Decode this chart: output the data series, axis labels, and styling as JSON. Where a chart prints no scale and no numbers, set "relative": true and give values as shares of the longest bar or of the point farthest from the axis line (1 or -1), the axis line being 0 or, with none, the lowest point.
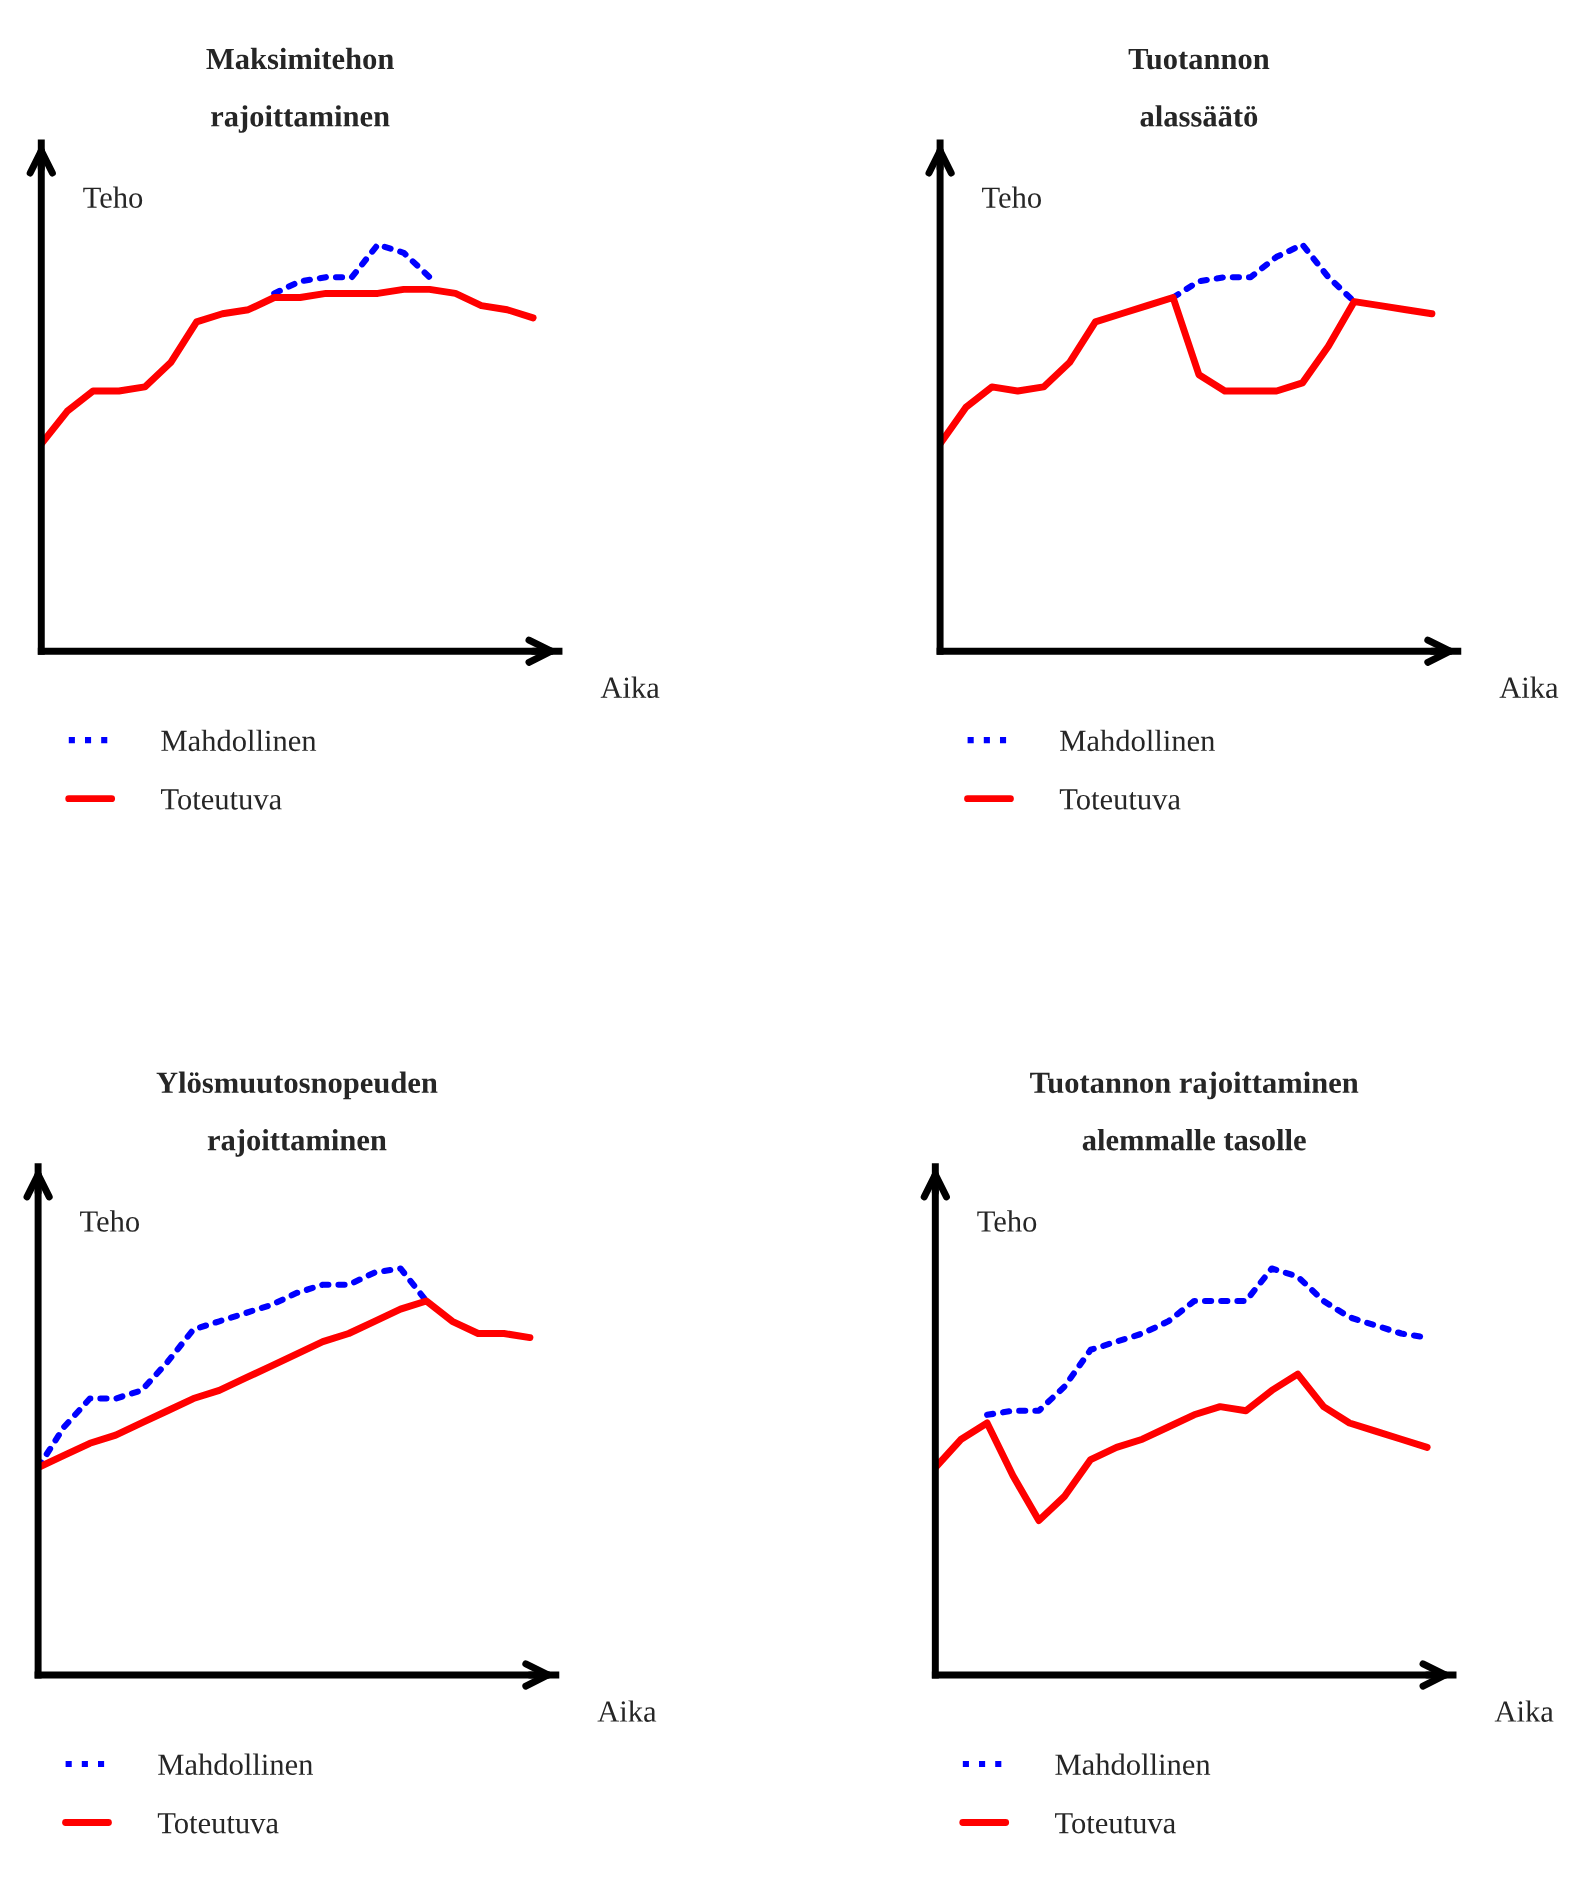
{
  "chart_data": [
    {
      "type": "line",
      "title": "Maksimitehon\nrajoittaminen",
      "xlabel": "Aika",
      "ylabel": "Teho",
      "relative": true,
      "legend": "bottom",
      "categories": [
        null,
        null,
        null,
        null,
        null,
        null,
        null,
        null,
        null,
        null,
        null,
        null,
        null,
        null,
        null,
        null,
        null,
        null,
        null,
        null
      ],
      "series": [
        {
          "name": "Mahdollinen",
          "color": "#0000ff",
          "line_style": "dotted",
          "values": [
            null,
            null,
            null,
            null,
            null,
            null,
            null,
            null,
            null,
            0.88,
            0.91,
            0.92,
            0.92,
            1.0,
            0.98,
            0.92,
            null,
            null,
            null,
            null
          ]
        },
        {
          "name": "Toteutuva",
          "color": "#ff0000",
          "line_style": "solid",
          "values": [
            0.51,
            0.59,
            0.64,
            0.64,
            0.65,
            0.71,
            0.81,
            0.83,
            0.84,
            0.87,
            0.87,
            0.88,
            0.88,
            0.88,
            0.89,
            0.89,
            0.88,
            0.85,
            0.84,
            0.82
          ]
        }
      ]
    },
    {
      "type": "line",
      "title": "Tuotannon\nalassäätö",
      "xlabel": "Aika",
      "ylabel": "Teho",
      "relative": true,
      "legend": "bottom",
      "categories": [
        null,
        null,
        null,
        null,
        null,
        null,
        null,
        null,
        null,
        null,
        null,
        null,
        null,
        null,
        null,
        null,
        null,
        null,
        null,
        null
      ],
      "series": [
        {
          "name": "Mahdollinen",
          "color": "#0000ff",
          "line_style": "dotted",
          "values": [
            null,
            null,
            null,
            null,
            null,
            null,
            null,
            null,
            null,
            0.87,
            0.91,
            0.92,
            0.92,
            0.97,
            1.0,
            0.92,
            0.86,
            null,
            null,
            null
          ]
        },
        {
          "name": "Toteutuva",
          "color": "#ff0000",
          "line_style": "solid",
          "values": [
            0.51,
            0.6,
            0.65,
            0.64,
            0.65,
            0.71,
            0.81,
            0.83,
            0.85,
            0.87,
            0.68,
            0.64,
            0.64,
            0.64,
            0.66,
            0.75,
            0.86,
            0.85,
            0.84,
            0.83
          ]
        }
      ]
    },
    {
      "type": "line",
      "title": "Ylösmuutosnopeuden\nrajoittaminen",
      "xlabel": "Aika",
      "ylabel": "Teho",
      "relative": true,
      "legend": "bottom",
      "categories": [
        null,
        null,
        null,
        null,
        null,
        null,
        null,
        null,
        null,
        null,
        null,
        null,
        null,
        null,
        null,
        null,
        null,
        null,
        null,
        null
      ],
      "series": [
        {
          "name": "Mahdollinen",
          "color": "#0000ff",
          "line_style": "dotted",
          "values": [
            0.51,
            0.61,
            0.68,
            0.68,
            0.7,
            0.77,
            0.85,
            0.87,
            0.89,
            0.91,
            0.94,
            0.96,
            0.96,
            0.99,
            1.0,
            0.92,
            null,
            null,
            null,
            null
          ]
        },
        {
          "name": "Toteutuva",
          "color": "#ff0000",
          "line_style": "solid",
          "values": [
            0.51,
            0.54,
            0.57,
            0.59,
            0.62,
            0.65,
            0.68,
            0.7,
            0.73,
            0.76,
            0.79,
            0.82,
            0.84,
            0.87,
            0.9,
            0.92,
            0.87,
            0.84,
            0.84,
            0.83
          ]
        }
      ]
    },
    {
      "type": "line",
      "title": "Tuotannon rajoittaminen\nalemmalle tasolle",
      "xlabel": "Aika",
      "ylabel": "Teho",
      "relative": true,
      "legend": "bottom",
      "categories": [
        null,
        null,
        null,
        null,
        null,
        null,
        null,
        null,
        null,
        null,
        null,
        null,
        null,
        null,
        null,
        null,
        null,
        null,
        null,
        null
      ],
      "series": [
        {
          "name": "Mahdollinen",
          "color": "#0000ff",
          "line_style": "dotted",
          "values": [
            null,
            null,
            0.64,
            0.65,
            0.65,
            0.71,
            0.8,
            0.82,
            0.84,
            0.87,
            0.92,
            0.92,
            0.92,
            1.0,
            0.98,
            0.92,
            0.88,
            0.86,
            0.84,
            0.83
          ]
        },
        {
          "name": "Toteutuva",
          "color": "#ff0000",
          "line_style": "solid",
          "values": [
            0.51,
            0.58,
            0.62,
            0.49,
            0.38,
            0.44,
            0.53,
            0.56,
            0.58,
            0.61,
            0.64,
            0.66,
            0.65,
            0.7,
            0.74,
            0.66,
            0.62,
            0.6,
            0.58,
            0.56
          ]
        }
      ]
    }
  ]
}
